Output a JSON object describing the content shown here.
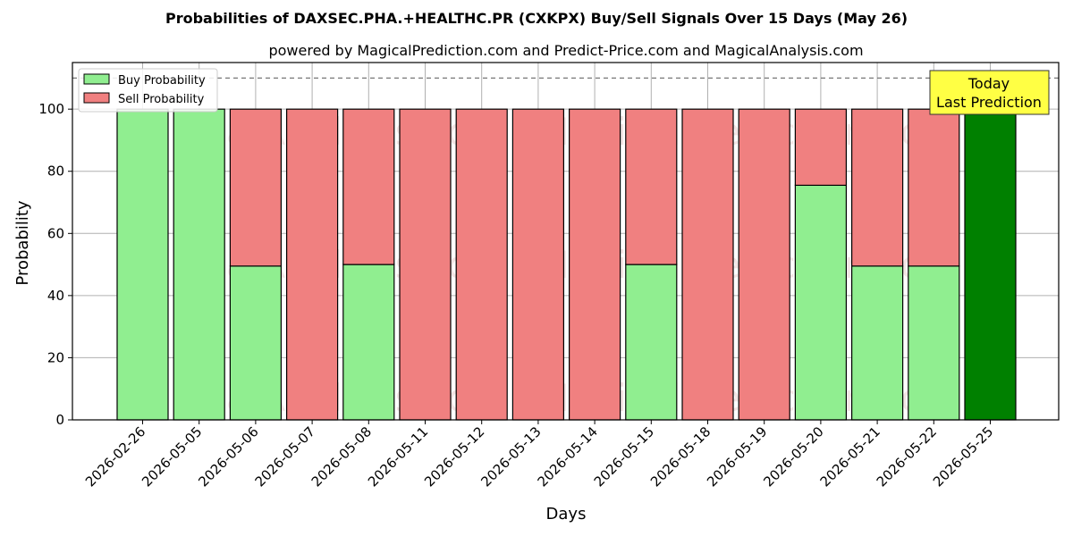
{
  "chart_data": {
    "type": "bar",
    "stacked": true,
    "title": "Probabilities of DAXSEC.PHA.+HEALTHC.PR (CXKPX) Buy/Sell Signals Over 15 Days (May 26)",
    "subtitle": "powered by MagicalPrediction.com and Predict-Price.com and MagicalAnalysis.com",
    "xlabel": "Days",
    "ylabel": "Probability",
    "ylim": [
      0,
      115
    ],
    "yticks": [
      0,
      20,
      40,
      60,
      80,
      100
    ],
    "reference_line": 110,
    "grid": true,
    "legend_position": "top-left",
    "categories": [
      "2026-02-26",
      "2026-05-05",
      "2026-05-06",
      "2026-05-07",
      "2026-05-08",
      "2026-05-11",
      "2026-05-12",
      "2026-05-13",
      "2026-05-14",
      "2026-05-15",
      "2026-05-18",
      "2026-05-19",
      "2026-05-20",
      "2026-05-21",
      "2026-05-22",
      "2026-05-25"
    ],
    "series": [
      {
        "name": "Buy Probability",
        "color": "#90ee90",
        "values": [
          100,
          100,
          49.5,
          0,
          50,
          0,
          0,
          0,
          0,
          50,
          0,
          0,
          75.5,
          49.5,
          49.5,
          100
        ]
      },
      {
        "name": "Sell Probability",
        "color": "#f08080",
        "values": [
          0,
          0,
          50.5,
          100,
          50,
          100,
          100,
          100,
          100,
          50,
          100,
          100,
          24.5,
          50.5,
          50.5,
          0
        ]
      }
    ],
    "highlight": {
      "index": 15,
      "color": "#008000"
    },
    "annotation": {
      "line1": "Today",
      "line2": "Last Prediction",
      "bg": "#ffff44"
    },
    "watermarks": [
      "MagicalAnalysis.com",
      "MagicalPrediction.com"
    ]
  }
}
